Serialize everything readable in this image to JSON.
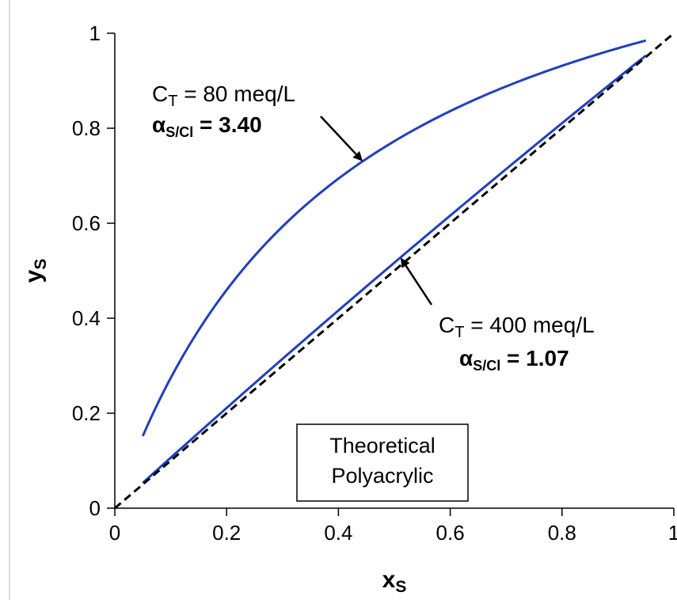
{
  "chart_data": {
    "type": "line",
    "xlabel": "x",
    "xlabel_sub": "S",
    "ylabel": "y",
    "ylabel_sub": "S",
    "xlim": [
      0,
      1
    ],
    "ylim": [
      0,
      1
    ],
    "x_ticks": [
      "0",
      "0.2",
      "0.4",
      "0.6",
      "0.8",
      "1"
    ],
    "y_ticks": [
      "0",
      "0.2",
      "0.4",
      "0.6",
      "0.8",
      "1"
    ],
    "grid": false,
    "colors": {
      "series": "#1f3fbf",
      "reference": "#000000"
    },
    "series": [
      {
        "alpha": 3.4,
        "x_range": [
          0.05,
          0.95
        ],
        "style": "solid"
      },
      {
        "alpha": 1.07,
        "x_range": [
          0.05,
          0.95
        ],
        "style": "solid"
      },
      {
        "alpha": 1.0,
        "x_range": [
          0,
          1
        ],
        "style": "dashed"
      }
    ],
    "annotations": [
      {
        "line1_main": "C",
        "line1_sub": "T",
        "line1_rest": " = 80 meq/L",
        "line2_main": "α",
        "line2_sub": "S/Cl",
        "line2_rest": " = 3.40",
        "target": [
          0.43,
          0.723
        ]
      },
      {
        "line1_main": "C",
        "line1_sub": "T",
        "line1_rest": " = 400 meq/L",
        "line2_main": "α",
        "line2_sub": "S/Cl",
        "line2_rest": " = 1.07",
        "target": [
          0.51,
          0.528
        ]
      }
    ],
    "box_text": [
      "Theoretical",
      "Polyacrylic"
    ]
  }
}
